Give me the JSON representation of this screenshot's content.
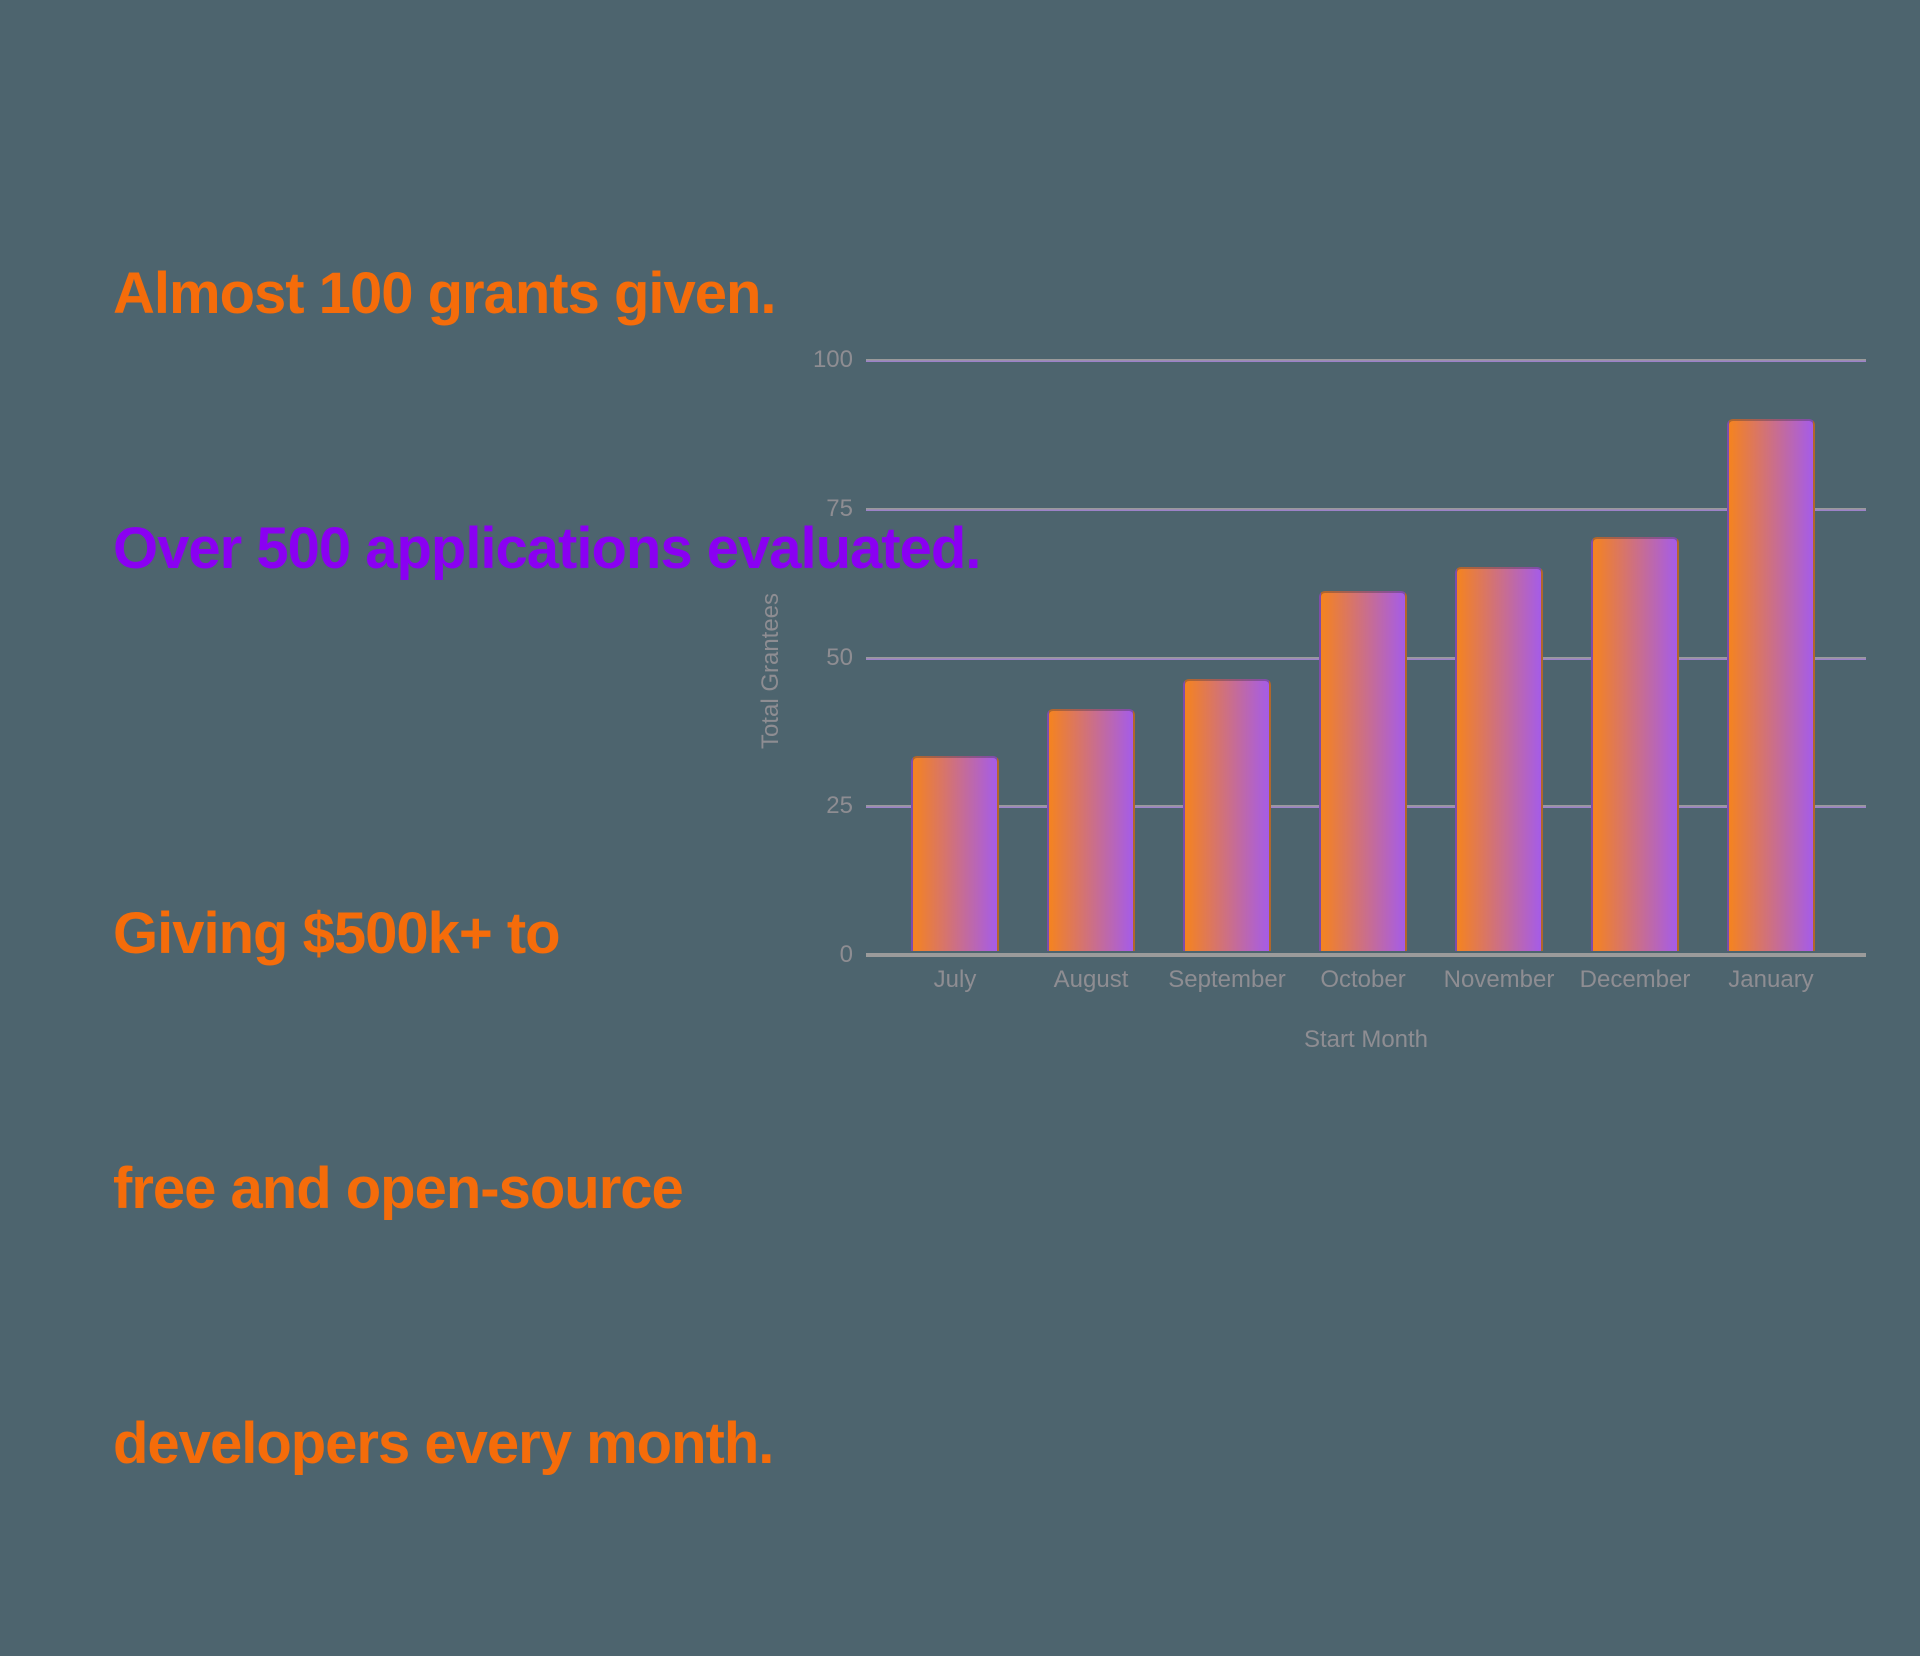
{
  "colors": {
    "background": "#4d646e",
    "accent_orange": "#f56c0a",
    "accent_purple": "#8a00f2",
    "bar_gradient_from": "#f5831f",
    "bar_gradient_to": "#a55ce8",
    "gridline": "#9c82c8",
    "axis_line": "#9b9b9b",
    "chart_text": "#8e8d92"
  },
  "headline": {
    "line1": "Almost 100 grants given.",
    "line2": "Over 500 applications evaluated."
  },
  "subtext": {
    "line1": "Giving $500k+ to",
    "line2": "free and open-source",
    "line3": "developers every month."
  },
  "chart_data": {
    "type": "bar",
    "title": "",
    "categories": [
      "July",
      "August",
      "September",
      "October",
      "November",
      "December",
      "January"
    ],
    "values": [
      33,
      41,
      46,
      61,
      65,
      70,
      90
    ],
    "xlabel": "Start Month",
    "ylabel": "Total Grantees",
    "yticks": [
      0,
      25,
      50,
      75,
      100
    ],
    "ylim": [
      0,
      100
    ],
    "grid": true,
    "legend": "none",
    "bar_gradient": [
      "#f5831f",
      "#a55ce8"
    ]
  }
}
